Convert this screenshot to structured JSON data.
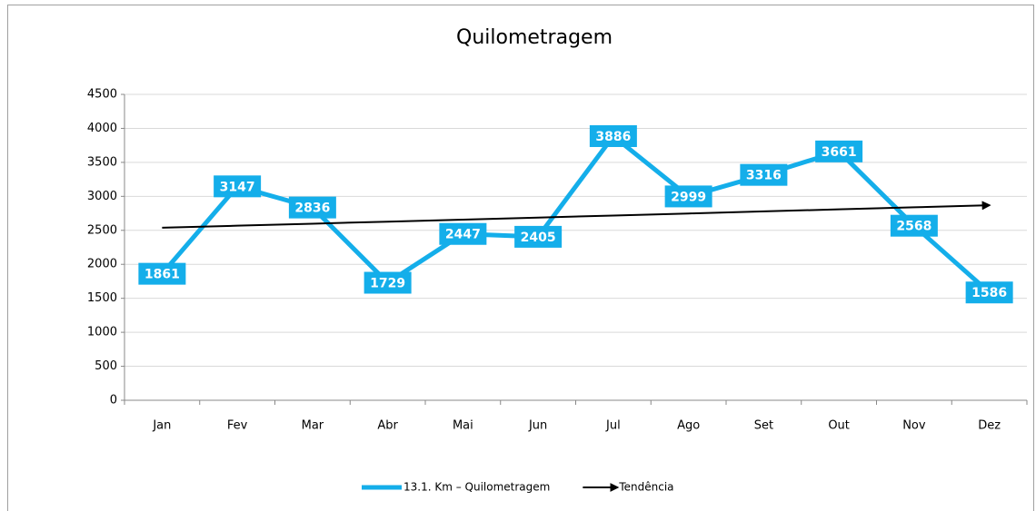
{
  "chart_data": {
    "type": "line",
    "title": "Quilometragem",
    "categories": [
      "Jan",
      "Fev",
      "Mar",
      "Abr",
      "Mai",
      "Jun",
      "Jul",
      "Ago",
      "Set",
      "Out",
      "Nov",
      "Dez"
    ],
    "series": [
      {
        "name": "13.1. Km – Quilometragem",
        "color": "#14aeea",
        "values": [
          1861,
          3147,
          2836,
          1729,
          2447,
          2405,
          3886,
          2999,
          3316,
          3661,
          2568,
          1586
        ],
        "data_labels": true
      },
      {
        "name": "Tendência",
        "color": "#000000",
        "values": [
          2538,
          2568,
          2598,
          2628,
          2658,
          2688,
          2718,
          2748,
          2779,
          2809,
          2839,
          2869
        ],
        "arrow": true
      }
    ],
    "ylim": [
      0,
      4500
    ],
    "yticks": [
      0,
      500,
      1000,
      1500,
      2000,
      2500,
      3000,
      3500,
      4000,
      4500
    ],
    "grid": true,
    "legend": "bottom"
  }
}
